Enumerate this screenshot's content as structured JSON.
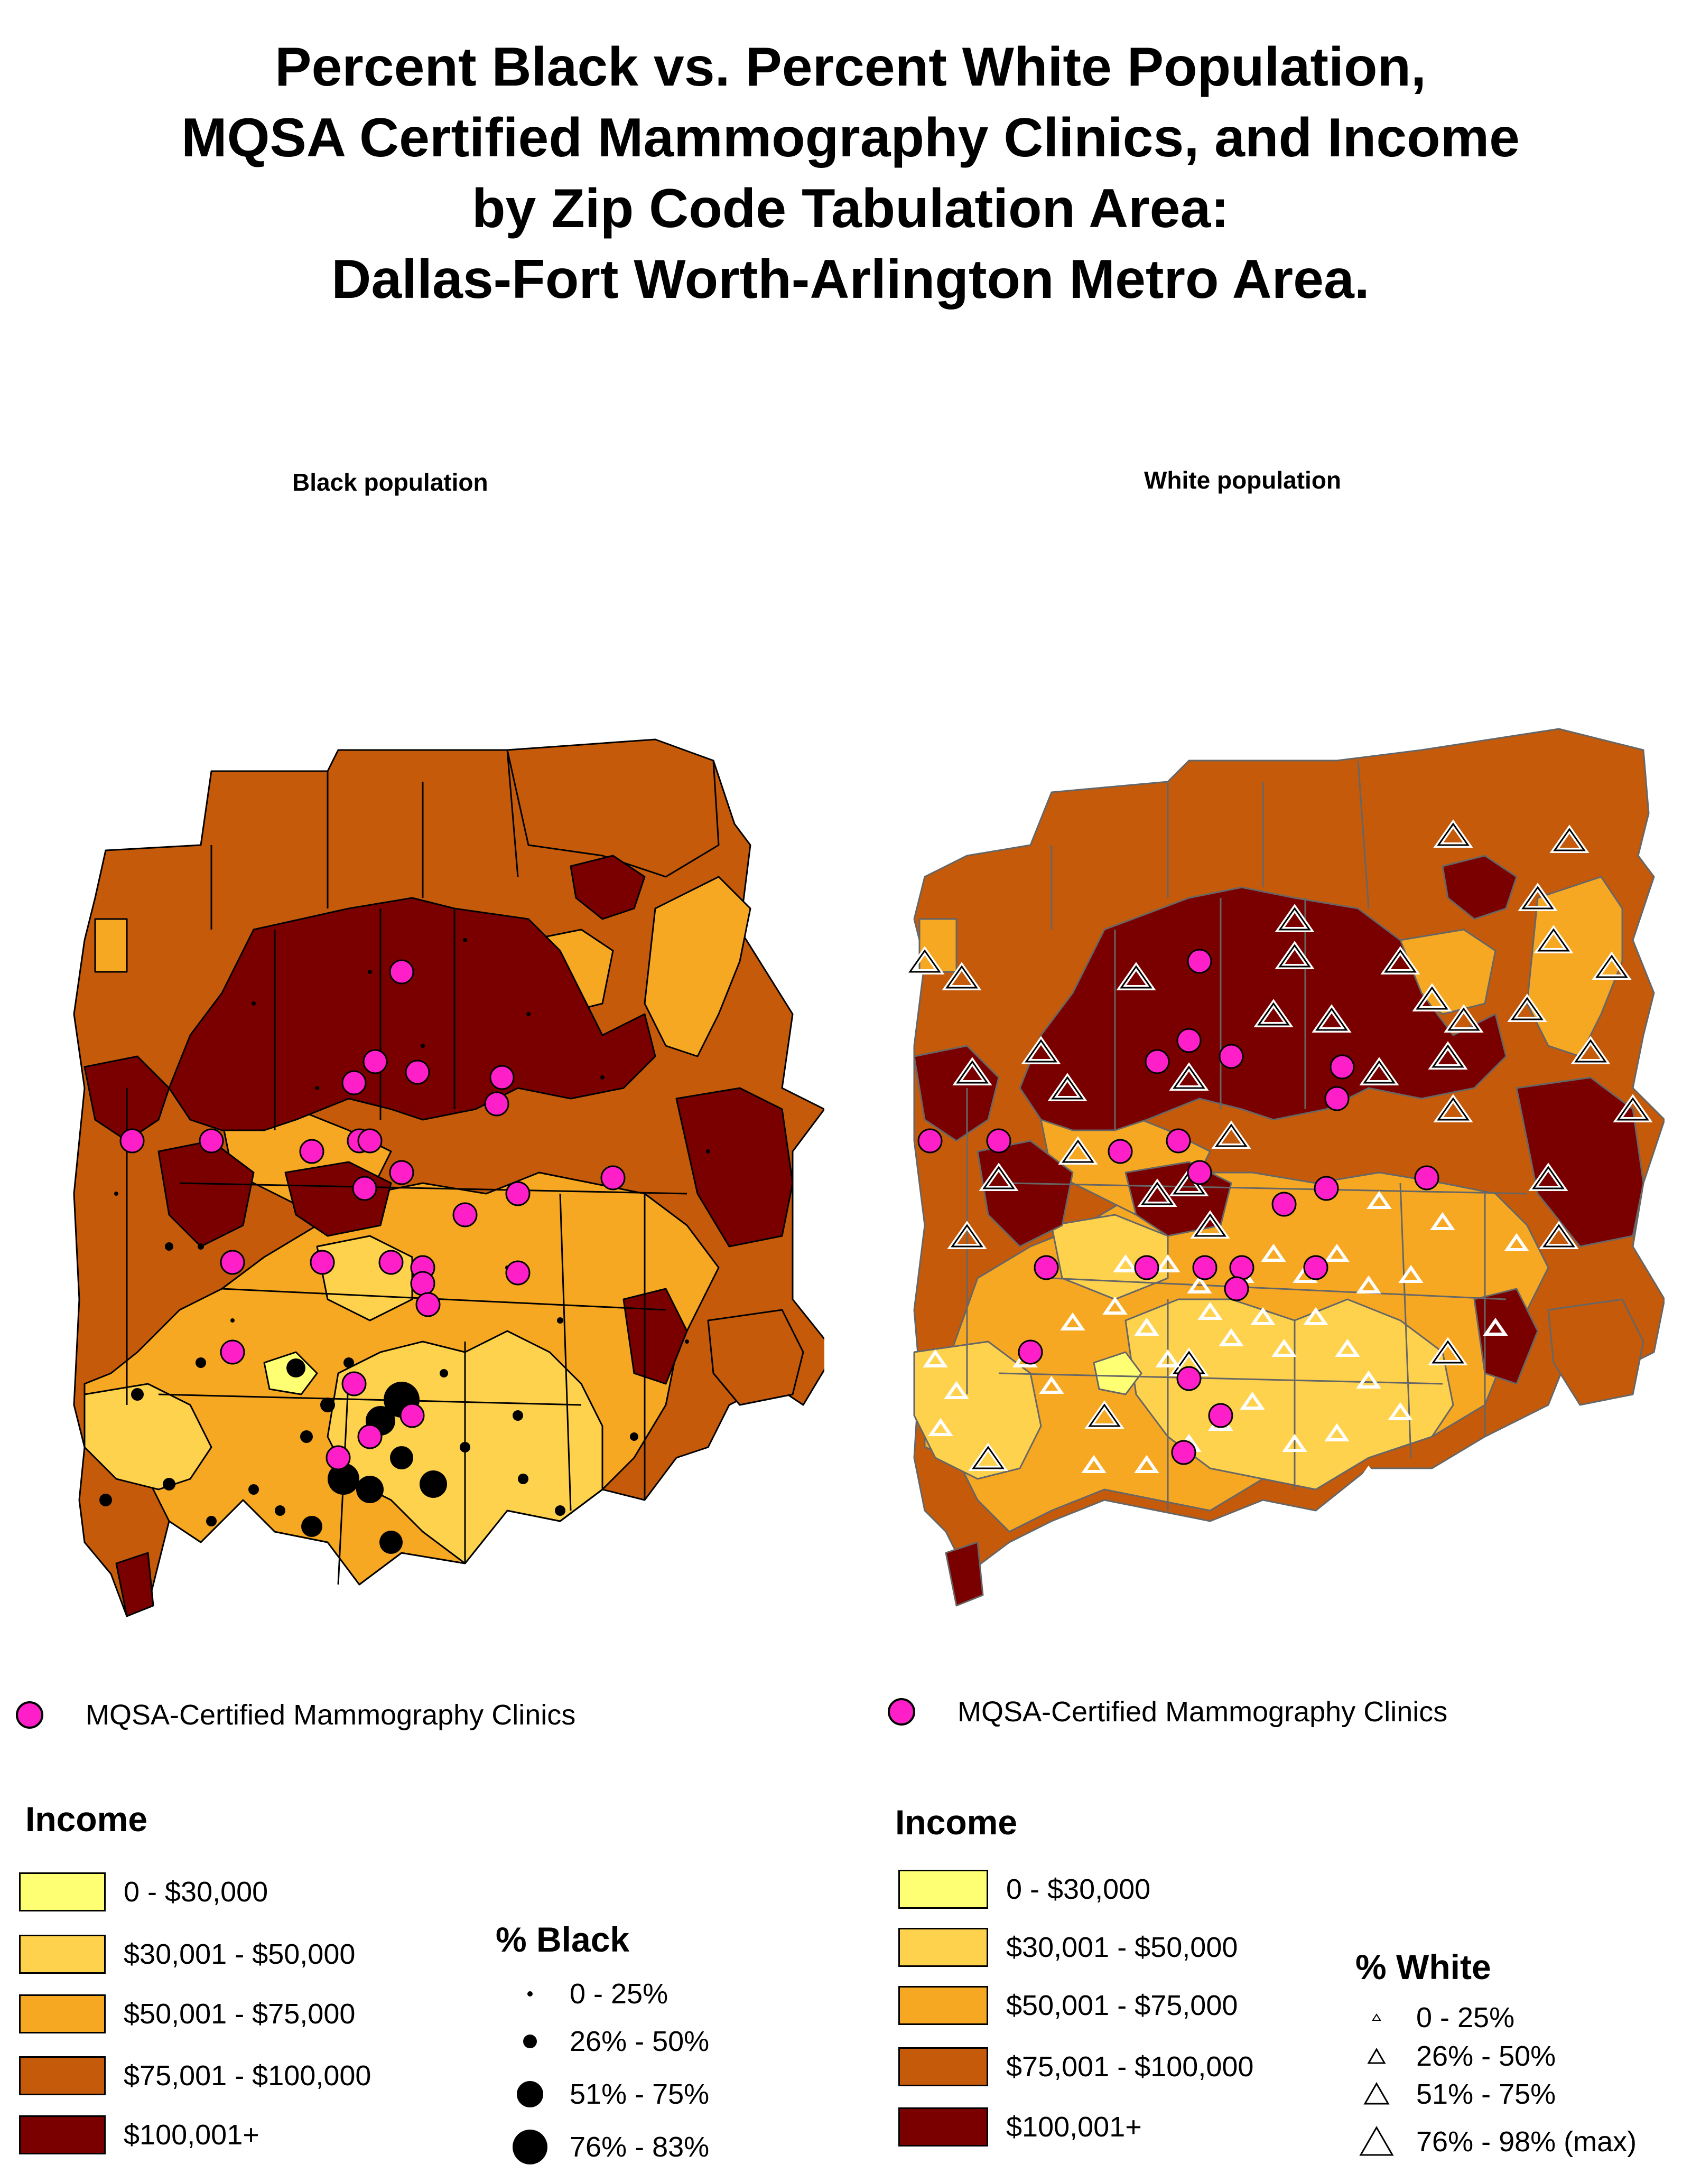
{
  "title_lines": [
    "Percent Black vs. Percent White Population,",
    "MQSA Certified Mammography Clinics, and Income",
    "by Zip Code Tabulation Area:",
    "Dallas-Fort Worth-Arlington Metro Area."
  ],
  "panels": {
    "left": {
      "subtitle": "Black population"
    },
    "right": {
      "subtitle": "White population"
    }
  },
  "clinic_legend": "MQSA-Certified Mammography Clinics",
  "income_legend": {
    "title": "Income",
    "classes": [
      {
        "label": "0 - $30,000",
        "color": "#ffff73"
      },
      {
        "label": "$30,001 - $50,000",
        "color": "#ffd24d"
      },
      {
        "label": "$50,001 - $75,000",
        "color": "#f7a823"
      },
      {
        "label": "$75,001 - $100,000",
        "color": "#c45a0a"
      },
      {
        "label": "$100,001+",
        "color": "#7a0000"
      }
    ]
  },
  "black_legend": {
    "title": "% Black",
    "classes": [
      "0 - 25%",
      "26% - 50%",
      "51% - 75%",
      "76% - 83%"
    ]
  },
  "white_legend": {
    "title": "% White",
    "classes": [
      "0 - 25%",
      "26% - 50%",
      "51% - 75%",
      "76% - 98% (max)"
    ]
  },
  "colors": {
    "clinic": "#ff1fc8",
    "boundary_left": "#000000",
    "boundary_right": "#666666"
  }
}
